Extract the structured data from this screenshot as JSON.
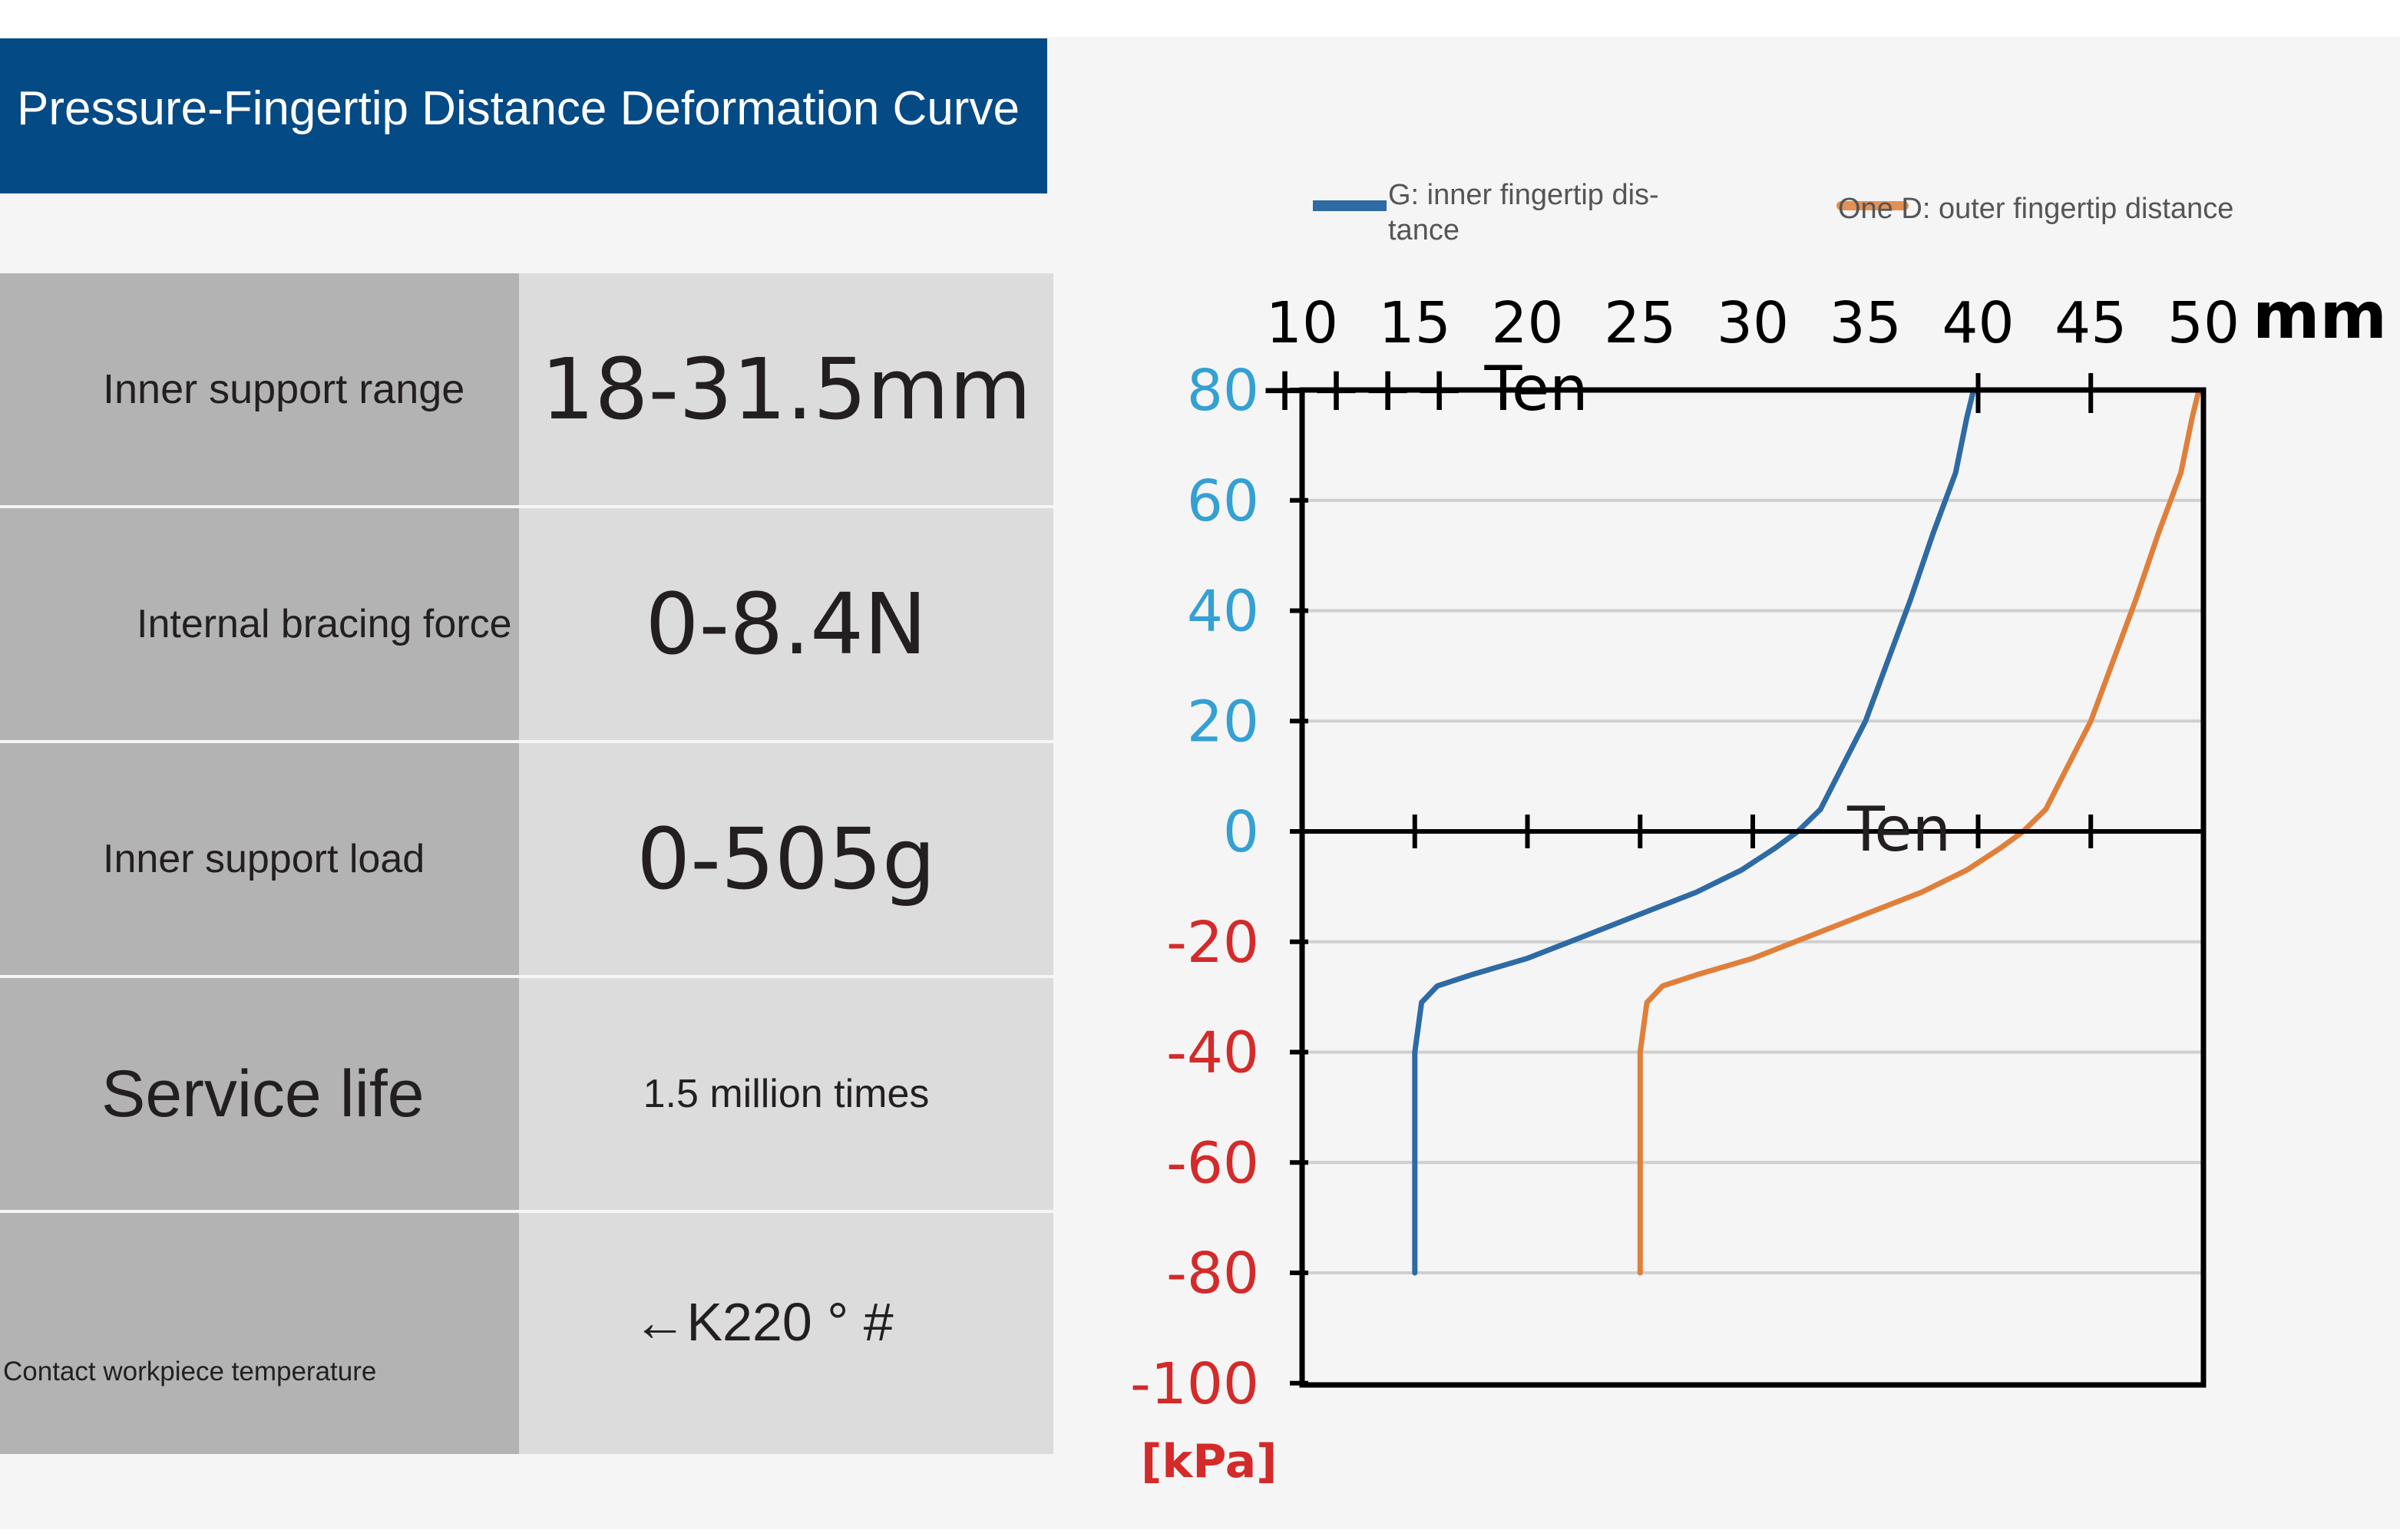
{
  "title": "Pressure-Fingertip Distance Deformation Curve",
  "specs": [
    {
      "label": "Inner support range",
      "value": "18-31.5mm"
    },
    {
      "label": "Internal bracing force",
      "value": "0-8.4N"
    },
    {
      "label": "Inner support load",
      "value": "0-505g"
    },
    {
      "label": "Service life",
      "value": "1.5 million times"
    },
    {
      "label": "Contact workpiece temperature",
      "value": "←K220 ° #"
    }
  ],
  "colors": {
    "banner": "#044a85",
    "label_cell": "#b3b3b3",
    "value_cell": "#dcdcdc",
    "series_inner": "#2e6aa4",
    "series_outer": "#e07f3a",
    "y_positive": "#34a0d3",
    "y_negative": "#d42a2a"
  },
  "chart_data": {
    "type": "line",
    "xlabel": "mm",
    "ylabel": "[kPa]",
    "xlim": [
      10,
      50
    ],
    "ylim": [
      -100,
      80
    ],
    "x_ticks": [
      10,
      15,
      20,
      25,
      30,
      35,
      40,
      45,
      50
    ],
    "y_ticks": [
      80,
      60,
      40,
      20,
      0,
      -20,
      -40,
      -60,
      -80,
      -100
    ],
    "grid": true,
    "legend_position": "top",
    "annotations": [
      "++++ Ten",
      "Ten"
    ],
    "series": [
      {
        "name": "G: inner fingertip dis-tance",
        "color": "#2e6aa4",
        "points": [
          [
            15,
            -80
          ],
          [
            15,
            -40
          ],
          [
            15.3,
            -31
          ],
          [
            16,
            -28
          ],
          [
            17.5,
            -26
          ],
          [
            20,
            -23
          ],
          [
            22.5,
            -19
          ],
          [
            25,
            -15
          ],
          [
            27.5,
            -11
          ],
          [
            29.5,
            -7
          ],
          [
            31,
            -3
          ],
          [
            32,
            0
          ],
          [
            33,
            4
          ],
          [
            34,
            12
          ],
          [
            35,
            20
          ],
          [
            36,
            31
          ],
          [
            37,
            42
          ],
          [
            38,
            54
          ],
          [
            39,
            65
          ],
          [
            39.5,
            75
          ],
          [
            39.8,
            80
          ]
        ]
      },
      {
        "name": "One D: outer fingertip distance",
        "color": "#e07f3a",
        "points": [
          [
            25,
            -80
          ],
          [
            25,
            -40
          ],
          [
            25.3,
            -31
          ],
          [
            26,
            -28
          ],
          [
            27.5,
            -26
          ],
          [
            30,
            -23
          ],
          [
            32.5,
            -19
          ],
          [
            35,
            -15
          ],
          [
            37.5,
            -11
          ],
          [
            39.5,
            -7
          ],
          [
            41,
            -3
          ],
          [
            42,
            0
          ],
          [
            43,
            4
          ],
          [
            44,
            12
          ],
          [
            45,
            20
          ],
          [
            46,
            31
          ],
          [
            47,
            42
          ],
          [
            48,
            54
          ],
          [
            49,
            65
          ],
          [
            49.5,
            75
          ],
          [
            49.8,
            80
          ]
        ]
      }
    ]
  }
}
